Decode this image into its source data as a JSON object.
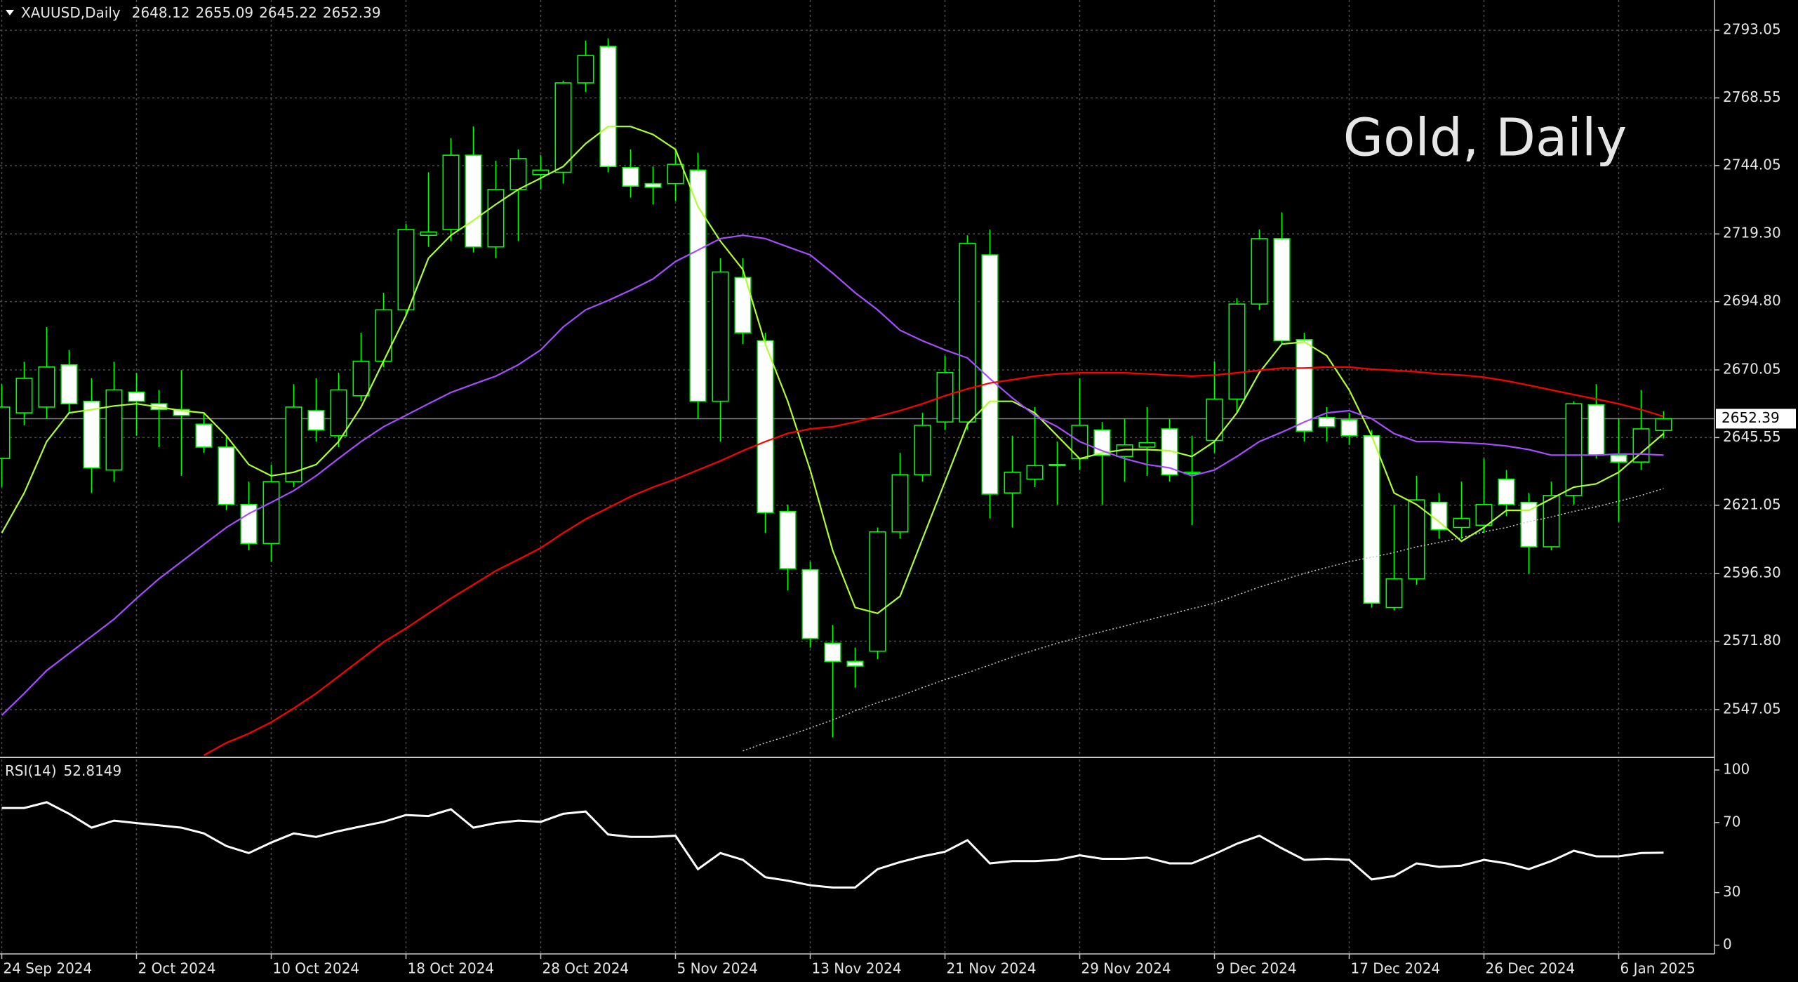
{
  "chart_data": {
    "type": "candlestick",
    "symbol": "XAUUSD,Daily",
    "watermark": "Gold, Daily",
    "categories": [
      "24 Sep 2024",
      null,
      null,
      null,
      null,
      null,
      "2 Oct 2024",
      null,
      null,
      null,
      null,
      null,
      "10 Oct 2024",
      null,
      null,
      null,
      null,
      null,
      "18 Oct 2024",
      null,
      null,
      null,
      null,
      null,
      "28 Oct 2024",
      null,
      null,
      null,
      null,
      null,
      "5 Nov 2024",
      null,
      null,
      null,
      null,
      null,
      "13 Nov 2024",
      null,
      null,
      null,
      null,
      null,
      "21 Nov 2024",
      null,
      null,
      null,
      null,
      null,
      "29 Nov 2024",
      null,
      null,
      null,
      null,
      null,
      "9 Dec 2024",
      null,
      null,
      null,
      null,
      null,
      "17 Dec 2024",
      null,
      null,
      null,
      null,
      null,
      "26 Dec 2024",
      null,
      null,
      null,
      null,
      null,
      "6 Jan 2025",
      null,
      null
    ],
    "open": [
      2638,
      2654.5,
      2656.6,
      2671.9,
      2658.7,
      2633.8,
      2662,
      2657.8,
      2655.7,
      2650.4,
      2642.1,
      2621.3,
      2607.2,
      2629.6,
      2655.3,
      2646.2,
      2660.7,
      2673.2,
      2691.8,
      2718.8,
      2720.9,
      2747.8,
      2714.6,
      2735.4,
      2740.8,
      2741.6,
      2774,
      2787.2,
      2743.3,
      2737.5,
      2737.5,
      2742.4,
      2658.7,
      2703.5,
      2680.6,
      2618.8,
      2597.7,
      2571.1,
      2564.5,
      2568.2,
      2611.4,
      2632.1,
      2651.2,
      2651.2,
      2711.7,
      2625.5,
      2630.5,
      2635.4,
      2637.9,
      2648.3,
      2638.7,
      2642.1,
      2648.7,
      2632.5,
      2644.5,
      2659.5,
      2693.9,
      2717.6,
      2681,
      2652.8,
      2652,
      2646.2,
      2584,
      2594.4,
      2622.1,
      2613,
      2613.8,
      2630.5,
      2622.1,
      2606,
      2624.6,
      2657.4,
      2639.2,
      2636.7,
      2648.12
    ],
    "high": [
      2664.9,
      2673,
      2685.6,
      2677.3,
      2667,
      2673,
      2669,
      2662.8,
      2670,
      2654.5,
      2646.2,
      2629.6,
      2635.8,
      2664.9,
      2667,
      2669,
      2683.5,
      2698,
      2723,
      2741.6,
      2754,
      2758.2,
      2745.8,
      2749.9,
      2747.8,
      2774.8,
      2789.3,
      2790.1,
      2749.9,
      2743.7,
      2749.9,
      2748.7,
      2710.5,
      2710.5,
      2683.5,
      2621.3,
      2600.6,
      2577.7,
      2569.5,
      2613,
      2640,
      2654.5,
      2675.2,
      2718.8,
      2720.9,
      2646.2,
      2656.6,
      2644.1,
      2667,
      2651.2,
      2652.4,
      2656.6,
      2652.4,
      2646.2,
      2673.2,
      2696,
      2720.9,
      2727.1,
      2683.5,
      2656.6,
      2654.5,
      2648.3,
      2621.3,
      2631.7,
      2625.5,
      2629.6,
      2638,
      2633.8,
      2625.5,
      2629.6,
      2658.7,
      2664.9,
      2652.4,
      2662.8,
      2655.09
    ],
    "low": [
      2627.6,
      2650,
      2652.4,
      2654.5,
      2625.5,
      2629.6,
      2646.2,
      2642.1,
      2631.7,
      2640,
      2619.3,
      2604.7,
      2600.6,
      2627.6,
      2644.1,
      2642.1,
      2658.7,
      2671.1,
      2689.8,
      2714.6,
      2716.7,
      2712.6,
      2710.5,
      2716.7,
      2735.4,
      2737.5,
      2770.7,
      2741.6,
      2732.5,
      2730,
      2731.2,
      2652.4,
      2644.1,
      2679.4,
      2611,
      2590.2,
      2569.5,
      2537,
      2555,
      2565.3,
      2609,
      2629.6,
      2648.3,
      2648.3,
      2616.3,
      2613,
      2627.6,
      2621.3,
      2633.8,
      2621.3,
      2629.6,
      2631.7,
      2629.6,
      2613.8,
      2640,
      2654.5,
      2691.8,
      2679.4,
      2644.1,
      2644.1,
      2642.9,
      2584,
      2583,
      2592.3,
      2608.9,
      2608.9,
      2611,
      2617.1,
      2596.3,
      2604.7,
      2621.3,
      2638,
      2615,
      2633.8,
      2645.22
    ],
    "close": [
      2656.6,
      2667,
      2671.1,
      2657.8,
      2634.6,
      2662.8,
      2658.7,
      2655.7,
      2653.6,
      2642.1,
      2621.3,
      2607.2,
      2629.6,
      2656.6,
      2648.3,
      2662.8,
      2673.2,
      2691.8,
      2720.9,
      2720,
      2747.8,
      2714.6,
      2735.4,
      2746.6,
      2742.4,
      2774,
      2783.9,
      2743.7,
      2736.6,
      2736.2,
      2744.5,
      2658.7,
      2705.5,
      2683.5,
      2618.4,
      2598.1,
      2572.8,
      2564.5,
      2562.8,
      2611.4,
      2632.1,
      2650,
      2669.1,
      2715.9,
      2625.1,
      2633,
      2635.4,
      2635.8,
      2650,
      2639.2,
      2642.9,
      2643.7,
      2632.1,
      2633,
      2659.5,
      2693.9,
      2717.6,
      2680.6,
      2647.9,
      2649.5,
      2646.2,
      2585.6,
      2594.4,
      2623,
      2612.2,
      2616.3,
      2621.3,
      2621.3,
      2606,
      2624.6,
      2657.8,
      2639.2,
      2636.7,
      2648.7,
      2652.39
    ],
    "colors": {
      "wick": "#00ff00",
      "bull_body": "#000000",
      "bear_body": "#ffffff",
      "price_line": "#808080"
    },
    "lines": [
      {
        "color": "#adff2f",
        "values": [
          2611,
          2625.5,
          2644.1,
          2654.5,
          2655.7,
          2657,
          2657.8,
          2656.6,
          2655.3,
          2654.5,
          2646.2,
          2635.8,
          2631.7,
          2633,
          2635.8,
          2644.1,
          2656.6,
          2673.2,
          2689.8,
          2710.5,
          2718.8,
          2724.2,
          2730,
          2735.4,
          2739.5,
          2743.7,
          2752,
          2758.2,
          2758.2,
          2755.3,
          2749.9,
          2729.2,
          2716.7,
          2706.4,
          2679.4,
          2658.7,
          2633.8,
          2604.7,
          2584,
          2581.9,
          2588.1,
          2608.9,
          2629.6,
          2650.4,
          2658.7,
          2658.7,
          2654.5,
          2646.2,
          2637.9,
          2640,
          2641.2,
          2641.2,
          2640.8,
          2638.7,
          2644.1,
          2654.5,
          2669.1,
          2679.4,
          2680.2,
          2675.2,
          2662.8,
          2646.2,
          2625.5,
          2621.3,
          2615.1,
          2608,
          2613,
          2619.2,
          2619.2,
          2623.4,
          2627.6,
          2628.8,
          2633,
          2640,
          2647
        ]
      },
      {
        "color": "#a64dff",
        "values": [
          2545,
          2552.9,
          2561.2,
          2567.4,
          2573.6,
          2579.8,
          2587.3,
          2594.4,
          2600.6,
          2606.8,
          2613,
          2618,
          2622.1,
          2626.3,
          2631.7,
          2638,
          2644.1,
          2649.5,
          2653.6,
          2657.8,
          2661.9,
          2664.9,
          2667.8,
          2671.9,
          2677.3,
          2685.6,
          2691.8,
          2695.2,
          2698.9,
          2703,
          2709.3,
          2713.4,
          2717.6,
          2718.8,
          2717.6,
          2714.6,
          2711.7,
          2705.1,
          2698,
          2691.8,
          2684.4,
          2680.6,
          2677.3,
          2674.4,
          2666.9,
          2659.9,
          2653.6,
          2649.5,
          2644.1,
          2640.8,
          2637.9,
          2635.8,
          2634.6,
          2631.7,
          2633.8,
          2638.7,
          2644.1,
          2647.5,
          2651.2,
          2654.5,
          2655.3,
          2652.4,
          2647,
          2644.1,
          2644.1,
          2643.7,
          2643.3,
          2642.5,
          2641.2,
          2639.2,
          2639.2,
          2639.2,
          2639.6,
          2639.6,
          2639.2
        ]
      },
      {
        "color": "#ff0000",
        "values": [
          null,
          null,
          null,
          null,
          null,
          null,
          null,
          null,
          null,
          2530.5,
          2535,
          2538.4,
          2542.5,
          2547.5,
          2552.9,
          2559.1,
          2565.3,
          2571.5,
          2576.5,
          2581.9,
          2587.3,
          2592.3,
          2597.3,
          2601.4,
          2605.6,
          2611,
          2616,
          2620.1,
          2624.2,
          2627.6,
          2630.5,
          2633.8,
          2637.1,
          2640.8,
          2644.1,
          2647.1,
          2648.7,
          2649.5,
          2651.2,
          2653.2,
          2655.3,
          2657.8,
          2660.7,
          2663.2,
          2665.3,
          2666.5,
          2667.8,
          2668.6,
          2669,
          2669,
          2669,
          2668.6,
          2668.2,
          2667.8,
          2668.2,
          2669,
          2669.9,
          2670.7,
          2670.7,
          2671.1,
          2671.1,
          2670.3,
          2669.9,
          2669.4,
          2668.6,
          2668.2,
          2667.4,
          2666.1,
          2664.5,
          2662.8,
          2661.1,
          2659.5,
          2657.8,
          2655.7,
          2653.2
        ]
      },
      {
        "color": "#c8c8c8",
        "dashed": true,
        "values": [
          null,
          null,
          null,
          null,
          null,
          null,
          null,
          null,
          null,
          null,
          null,
          null,
          null,
          null,
          null,
          null,
          null,
          null,
          null,
          null,
          null,
          null,
          null,
          null,
          null,
          null,
          null,
          null,
          null,
          null,
          null,
          null,
          null,
          2532.1,
          2535,
          2537.5,
          2540.4,
          2543.3,
          2546.6,
          2549.6,
          2552,
          2555,
          2557.9,
          2560.4,
          2563.2,
          2566.1,
          2568.6,
          2571.1,
          2573.2,
          2575.3,
          2577.3,
          2579.4,
          2581.5,
          2583.6,
          2585.6,
          2588.5,
          2591.4,
          2593.9,
          2596.4,
          2598.5,
          2600.6,
          2602.2,
          2603.9,
          2606,
          2607.6,
          2609.3,
          2611.4,
          2613,
          2615.1,
          2616.8,
          2618.8,
          2620.5,
          2622.5,
          2624.6,
          2627.1
        ]
      }
    ],
    "ylim": [
      2530,
      2804
    ],
    "yticks": [
      2547.05,
      {
        "value": 2571.8,
        "label": "2571.80"
      },
      {
        "value": 2596.3,
        "label": "2596.30"
      },
      2621.05,
      2645.55,
      2670.05,
      {
        "value": 2694.8,
        "label": "2694.80"
      },
      {
        "value": 2719.3,
        "label": "2719.30"
      },
      2744.05,
      2768.55,
      2793.05
    ],
    "grid": true,
    "rsi": {
      "label": "RSI(14)",
      "color": "#ffffff",
      "values": [
        78.3,
        78.3,
        81.6,
        75,
        67.1,
        71.1,
        69.7,
        68.4,
        67.1,
        63.8,
        56.6,
        52.6,
        58.6,
        63.8,
        61.8,
        65.1,
        67.8,
        70.4,
        74.3,
        73.7,
        77.6,
        67.1,
        69.7,
        71.1,
        70.4,
        75,
        76.3,
        63.2,
        61.8,
        61.8,
        62.5,
        43.4,
        52.6,
        48.7,
        38.8,
        36.8,
        34.2,
        32.9,
        32.9,
        43.4,
        47.4,
        50.7,
        53.3,
        59.9,
        46.7,
        48,
        48,
        48.7,
        51.3,
        49.3,
        49.3,
        50,
        46.7,
        46.7,
        52,
        57.9,
        62.5,
        55.3,
        48.7,
        49.3,
        48.7,
        37.5,
        39.5,
        46.7,
        44.7,
        45.4,
        48.7,
        46.7,
        43.4,
        48,
        53.9,
        50.7,
        50.7,
        52.6,
        52.8149
      ],
      "ylim": [
        -5,
        106
      ],
      "yticks": [
        0,
        30,
        70,
        100
      ]
    }
  }
}
